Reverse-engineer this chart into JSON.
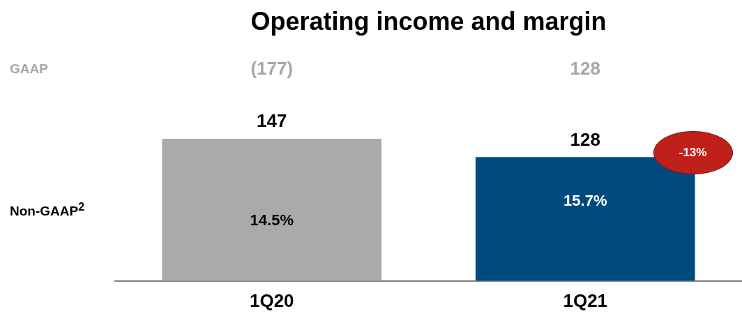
{
  "chart_data": {
    "type": "bar",
    "title": "Operating income and margin",
    "categories": [
      "1Q20",
      "1Q21"
    ],
    "values": [
      147,
      128
    ],
    "colors": [
      "#aaaaaa",
      "#004a80"
    ],
    "data_labels": true,
    "annotations": [
      "GAAP",
      "Non-GAAP$^{2}$",
      "(177)",
      "128",
      "14.5%",
      "15.7%",
      "-13%"
    ]
  }
}
